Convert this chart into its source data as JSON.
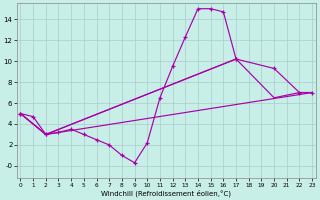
{
  "bg_color": "#c8eee8",
  "grid_color": "#aacccc",
  "line_color": "#aa00aa",
  "xlim": [
    -0.3,
    23.3
  ],
  "ylim": [
    -1.2,
    15.5
  ],
  "xlabel": "Windchill (Refroidissement éolien,°C)",
  "ytick_values": [
    0,
    2,
    4,
    6,
    8,
    10,
    12,
    14
  ],
  "ytick_labels": [
    "-0",
    "2",
    "4",
    "6",
    "8",
    "10",
    "12",
    "14"
  ],
  "xtick_values": [
    0,
    1,
    2,
    3,
    4,
    5,
    6,
    7,
    8,
    9,
    10,
    11,
    12,
    13,
    14,
    15,
    16,
    17,
    18,
    19,
    20,
    21,
    22,
    23
  ],
  "curve1_x": [
    0,
    1,
    2,
    3,
    4,
    5,
    6,
    7,
    8,
    9,
    10,
    11,
    12,
    13,
    14,
    15,
    16,
    17
  ],
  "curve1_y": [
    5,
    4.7,
    3.0,
    3.2,
    3.5,
    3.0,
    2.5,
    2.0,
    1.0,
    0.3,
    2.2,
    6.5,
    9.5,
    12.3,
    15.0,
    15.0,
    14.7,
    10.2
  ],
  "curve2_x": [
    2,
    3,
    4,
    5,
    6,
    7,
    8,
    9,
    10,
    17,
    20,
    21,
    22,
    23
  ],
  "curve2_y": [
    3.0,
    3.2,
    3.5,
    3.0,
    2.5,
    2.0,
    1.0,
    0.3,
    2.2,
    10.2,
    9.3,
    6.5,
    7.0,
    7.0
  ],
  "line_fan": [
    {
      "x": [
        0,
        2,
        23
      ],
      "y": [
        5,
        3.0,
        7.0
      ]
    },
    {
      "x": [
        0,
        2,
        17,
        20,
        22,
        23
      ],
      "y": [
        5,
        3.0,
        10.2,
        9.3,
        7.0,
        7.0
      ]
    },
    {
      "x": [
        0,
        2,
        17,
        20,
        22,
        23
      ],
      "y": [
        5,
        3.0,
        10.2,
        6.5,
        7.0,
        7.0
      ]
    }
  ]
}
